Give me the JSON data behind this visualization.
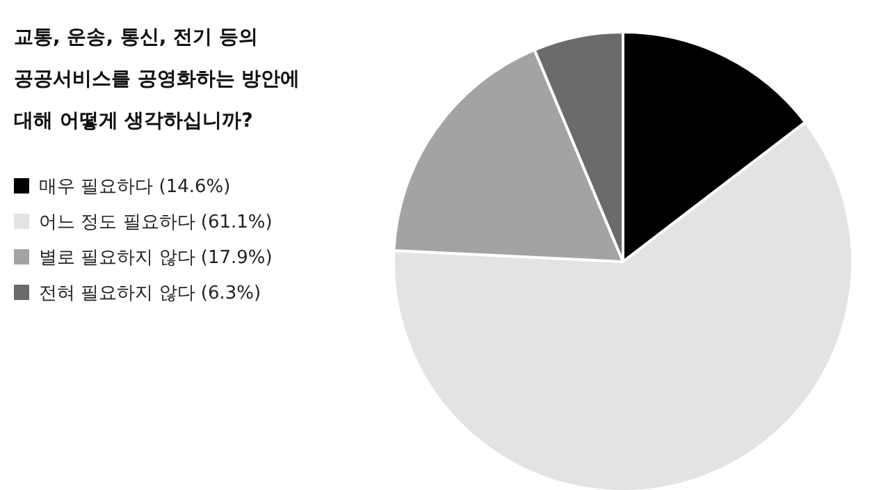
{
  "chart_data": {
    "type": "pie",
    "title": "교통, 운송, 통신, 전기 등의\n공공서비스를 공영화하는 방안에\n대해 어떻게 생각하십니까?",
    "categories": [
      "매우 필요하다 (14.6%)",
      "어느 정도 필요하다 (61.1%)",
      "별로 필요하지 않다 (17.9%)",
      "전혀 필요하지 않다 (6.3%)"
    ],
    "values": [
      14.6,
      61.1,
      17.9,
      6.3
    ],
    "colors": [
      "#000000",
      "#e3e3e3",
      "#a3a3a3",
      "#6b6b6b"
    ],
    "legend": "left"
  }
}
